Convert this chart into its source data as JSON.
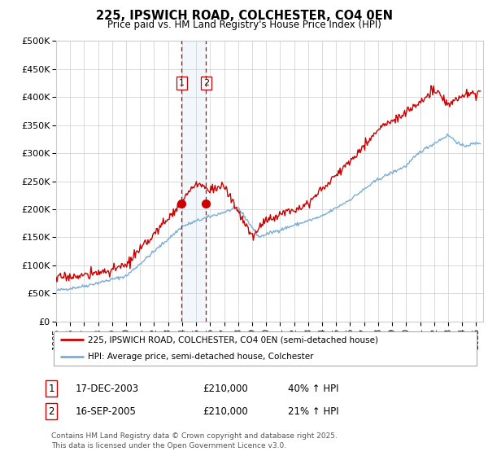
{
  "title": "225, IPSWICH ROAD, COLCHESTER, CO4 0EN",
  "subtitle": "Price paid vs. HM Land Registry's House Price Index (HPI)",
  "ylabel_ticks": [
    "£0",
    "£50K",
    "£100K",
    "£150K",
    "£200K",
    "£250K",
    "£300K",
    "£350K",
    "£400K",
    "£450K",
    "£500K"
  ],
  "ylim": [
    0,
    500000
  ],
  "xlim_start": 1995.0,
  "xlim_end": 2025.5,
  "marker1_x": 2003.96,
  "marker1_y": 210000,
  "marker2_x": 2005.71,
  "marker2_y": 210000,
  "vline1_x": 2003.96,
  "vline2_x": 2005.71,
  "legend_line1": "225, IPSWICH ROAD, COLCHESTER, CO4 0EN (semi-detached house)",
  "legend_line2": "HPI: Average price, semi-detached house, Colchester",
  "table_row1_num": "1",
  "table_row1_date": "17-DEC-2003",
  "table_row1_price": "£210,000",
  "table_row1_hpi": "40% ↑ HPI",
  "table_row2_num": "2",
  "table_row2_date": "16-SEP-2005",
  "table_row2_price": "£210,000",
  "table_row2_hpi": "21% ↑ HPI",
  "footnote1": "Contains HM Land Registry data © Crown copyright and database right 2025.",
  "footnote2": "This data is licensed under the Open Government Licence v3.0.",
  "line_color_red": "#cc0000",
  "line_color_blue": "#7aaed6",
  "bg_color": "#ffffff",
  "grid_color": "#cccccc",
  "marker_vline_color": "#cc0000",
  "highlight_bg": "#ddeeff"
}
